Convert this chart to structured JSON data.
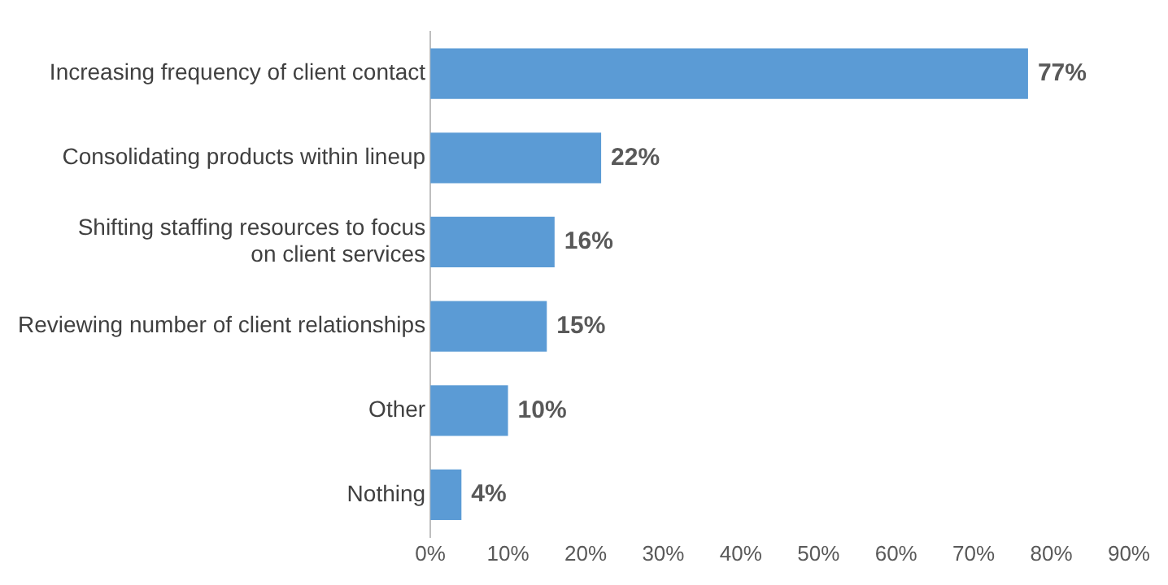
{
  "chart_data": {
    "type": "bar",
    "orientation": "horizontal",
    "categories": [
      "Increasing frequency of client contact",
      "Consolidating products within lineup",
      "Shifting staffing resources to focus\non client services",
      "Reviewing number of client relationships",
      "Other",
      "Nothing"
    ],
    "values": [
      77,
      22,
      16,
      15,
      10,
      4
    ],
    "value_labels": [
      "77%",
      "22%",
      "16%",
      "15%",
      "10%",
      "4%"
    ],
    "color": "#5b9bd5",
    "xlim": [
      0,
      90
    ],
    "xticks": [
      {
        "value": 0,
        "label": "0%"
      },
      {
        "value": 10,
        "label": "10%"
      },
      {
        "value": 20,
        "label": "20%"
      },
      {
        "value": 30,
        "label": "30%"
      },
      {
        "value": 40,
        "label": "40%"
      },
      {
        "value": 50,
        "label": "50%"
      },
      {
        "value": 60,
        "label": "60%"
      },
      {
        "value": 70,
        "label": "70%"
      },
      {
        "value": 80,
        "label": "80%"
      },
      {
        "value": 90,
        "label": "90%"
      }
    ],
    "grid": false,
    "legend": false
  }
}
